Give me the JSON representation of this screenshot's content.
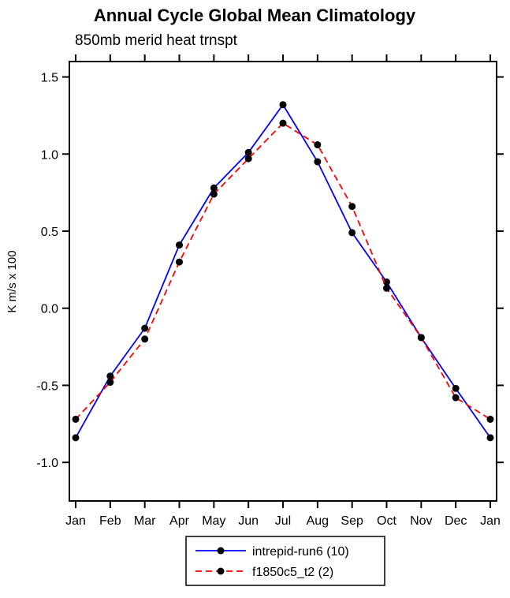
{
  "page": {
    "background": "#ffffff"
  },
  "chart_data": {
    "type": "line",
    "title": "Annual Cycle Global Mean Climatology",
    "subtitle": "850mb merid heat trnspt",
    "ylabel": "K m/s x 100",
    "xlabel": "",
    "categories": [
      "Jan",
      "Feb",
      "Mar",
      "Apr",
      "May",
      "Jun",
      "Jul",
      "Aug",
      "Sep",
      "Oct",
      "Nov",
      "Dec",
      "Jan"
    ],
    "yticks": [
      "1.5",
      "1.0",
      "0.5",
      "0.0",
      "-0.5",
      "-1.0"
    ],
    "ylim": [
      -1.25,
      1.6
    ],
    "grid": false,
    "legend_position": "bottom-center",
    "frame_color": "#000000",
    "series": [
      {
        "name": "intrepid-run6 (10)",
        "line_color": "#0000ff",
        "line_style": "solid",
        "marker": "filled-circle",
        "marker_color": "#000000",
        "values": [
          -0.84,
          -0.44,
          -0.13,
          0.41,
          0.78,
          1.01,
          1.32,
          0.95,
          0.49,
          0.17,
          -0.19,
          -0.52,
          -0.84
        ]
      },
      {
        "name": "f1850c5_t2 (2)",
        "line_color": "#ff0000",
        "line_style": "dashed",
        "marker": "filled-circle",
        "marker_color": "#000000",
        "values": [
          -0.72,
          -0.48,
          -0.2,
          0.3,
          0.74,
          0.97,
          1.2,
          1.06,
          0.66,
          0.13,
          -0.19,
          -0.58,
          -0.72
        ]
      }
    ]
  }
}
